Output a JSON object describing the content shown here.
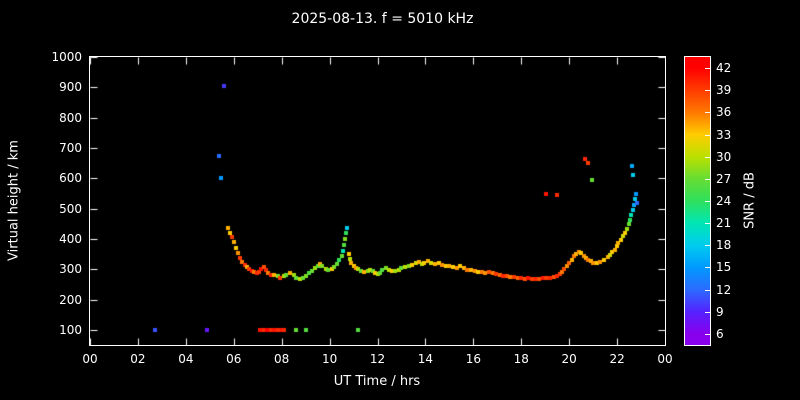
{
  "background_color": "#000000",
  "text_color": "#ffffff",
  "chart_data": {
    "type": "scatter",
    "title": "2025-08-13. f = 5010 kHz",
    "xlabel": "UT Time / hrs",
    "ylabel": "Virtual height / km",
    "xlim": [
      0,
      24
    ],
    "ylim": [
      50,
      1000
    ],
    "grid": false,
    "x_tick_values": [
      0,
      2,
      4,
      6,
      8,
      10,
      12,
      14,
      16,
      18,
      20,
      22,
      24
    ],
    "x_tick_labels": [
      "00",
      "02",
      "04",
      "06",
      "08",
      "10",
      "12",
      "14",
      "16",
      "18",
      "20",
      "22",
      "00"
    ],
    "y_tick_values": [
      100,
      200,
      300,
      400,
      500,
      600,
      700,
      800,
      900,
      1000
    ],
    "y_tick_labels": [
      "100",
      "200",
      "300",
      "400",
      "500",
      "600",
      "700",
      "800",
      "900",
      "1000"
    ],
    "colorbar": {
      "label": "SNR / dB",
      "tick_values": [
        6,
        9,
        12,
        15,
        18,
        21,
        24,
        27,
        30,
        33,
        36,
        39,
        42
      ],
      "tick_labels": [
        "6",
        "9",
        "12",
        "15",
        "18",
        "21",
        "24",
        "27",
        "30",
        "33",
        "36",
        "39",
        "42"
      ],
      "min": 4.5,
      "max": 43.5,
      "palette": [
        {
          "v": 6,
          "c": "#8800ee"
        },
        {
          "v": 9,
          "c": "#5522ff"
        },
        {
          "v": 12,
          "c": "#2b6bff"
        },
        {
          "v": 15,
          "c": "#0099ff"
        },
        {
          "v": 18,
          "c": "#00ccee"
        },
        {
          "v": 21,
          "c": "#00e6b4"
        },
        {
          "v": 24,
          "c": "#2ee05c"
        },
        {
          "v": 27,
          "c": "#66dd33"
        },
        {
          "v": 30,
          "c": "#bbe000"
        },
        {
          "v": 33,
          "c": "#ffcc00"
        },
        {
          "v": 36,
          "c": "#ff7800"
        },
        {
          "v": 39,
          "c": "#ff3c00"
        },
        {
          "v": 42,
          "c": "#ff0000"
        }
      ]
    },
    "points_format": [
      "ut_hours",
      "virtual_height_km",
      "snr_db"
    ],
    "points": [
      [
        2.7,
        100,
        11
      ],
      [
        4.9,
        100,
        8
      ],
      [
        5.38,
        675,
        12
      ],
      [
        5.47,
        600,
        15
      ],
      [
        5.6,
        905,
        10
      ],
      [
        5.78,
        435,
        34
      ],
      [
        5.86,
        420,
        33
      ],
      [
        5.93,
        405,
        39
      ],
      [
        6.0,
        390,
        34
      ],
      [
        6.08,
        370,
        33
      ],
      [
        6.17,
        352,
        35
      ],
      [
        6.26,
        338,
        39
      ],
      [
        6.35,
        325,
        36
      ],
      [
        6.45,
        315,
        40
      ],
      [
        6.55,
        306,
        34
      ],
      [
        6.65,
        300,
        39
      ],
      [
        6.75,
        294,
        41
      ],
      [
        6.85,
        290,
        36
      ],
      [
        6.95,
        286,
        40
      ],
      [
        7.05,
        290,
        39
      ],
      [
        7.15,
        302,
        41
      ],
      [
        7.25,
        308,
        38
      ],
      [
        7.35,
        296,
        40
      ],
      [
        7.45,
        288,
        36
      ],
      [
        7.55,
        282,
        40
      ],
      [
        7.7,
        280,
        34
      ],
      [
        7.85,
        276,
        28
      ],
      [
        7.95,
        272,
        39
      ],
      [
        7.1,
        100,
        41
      ],
      [
        7.25,
        100,
        40
      ],
      [
        7.4,
        100,
        42
      ],
      [
        7.55,
        100,
        40
      ],
      [
        7.7,
        100,
        41
      ],
      [
        7.85,
        100,
        40
      ],
      [
        8.0,
        100,
        41
      ],
      [
        8.1,
        100,
        40
      ],
      [
        8.1,
        276,
        30
      ],
      [
        8.2,
        282,
        27
      ],
      [
        8.35,
        288,
        34
      ],
      [
        8.5,
        280,
        29
      ],
      [
        8.6,
        272,
        27
      ],
      [
        8.75,
        268,
        30
      ],
      [
        8.9,
        272,
        27
      ],
      [
        8.6,
        100,
        27
      ],
      [
        9.0,
        100,
        26
      ],
      [
        9.0,
        278,
        28
      ],
      [
        9.15,
        286,
        26
      ],
      [
        9.25,
        295,
        27
      ],
      [
        9.4,
        305,
        29
      ],
      [
        9.5,
        312,
        27
      ],
      [
        9.6,
        318,
        34
      ],
      [
        9.7,
        310,
        28
      ],
      [
        9.85,
        302,
        30
      ],
      [
        9.95,
        296,
        27
      ],
      [
        10.1,
        300,
        33
      ],
      [
        10.2,
        308,
        28
      ],
      [
        10.3,
        318,
        27
      ],
      [
        10.4,
        330,
        24
      ],
      [
        10.5,
        345,
        27
      ],
      [
        10.55,
        360,
        21
      ],
      [
        10.6,
        380,
        26
      ],
      [
        10.65,
        400,
        28
      ],
      [
        10.7,
        420,
        24
      ],
      [
        10.72,
        435,
        18
      ],
      [
        10.8,
        350,
        33
      ],
      [
        10.85,
        335,
        30
      ],
      [
        10.9,
        322,
        34
      ],
      [
        11.0,
        312,
        33
      ],
      [
        11.1,
        305,
        35
      ],
      [
        11.2,
        100,
        26
      ],
      [
        11.2,
        300,
        30
      ],
      [
        11.3,
        295,
        27
      ],
      [
        11.45,
        290,
        34
      ],
      [
        11.6,
        293,
        28
      ],
      [
        11.7,
        298,
        30
      ],
      [
        11.8,
        294,
        27
      ],
      [
        11.9,
        288,
        33
      ],
      [
        12.0,
        285,
        30
      ],
      [
        12.1,
        289,
        27
      ],
      [
        12.2,
        296,
        26
      ],
      [
        12.35,
        303,
        28
      ],
      [
        12.5,
        299,
        30
      ],
      [
        12.6,
        293,
        33
      ],
      [
        12.75,
        295,
        29
      ],
      [
        12.9,
        299,
        30
      ],
      [
        13.0,
        303,
        27
      ],
      [
        13.15,
        308,
        30
      ],
      [
        13.3,
        312,
        28
      ],
      [
        13.45,
        315,
        33
      ],
      [
        13.6,
        320,
        31
      ],
      [
        13.75,
        324,
        34
      ],
      [
        13.85,
        318,
        30
      ],
      [
        13.95,
        322,
        33
      ],
      [
        14.1,
        327,
        34
      ],
      [
        14.25,
        322,
        31
      ],
      [
        14.4,
        317,
        34
      ],
      [
        14.55,
        319,
        33
      ],
      [
        14.7,
        314,
        35
      ],
      [
        14.85,
        310,
        33
      ],
      [
        15.0,
        312,
        34
      ],
      [
        15.15,
        308,
        33
      ],
      [
        15.3,
        305,
        35
      ],
      [
        15.45,
        309,
        33
      ],
      [
        15.6,
        303,
        34
      ],
      [
        15.75,
        299,
        36
      ],
      [
        15.9,
        297,
        34
      ],
      [
        16.05,
        294,
        35
      ],
      [
        16.2,
        292,
        33
      ],
      [
        16.35,
        290,
        36
      ],
      [
        16.5,
        288,
        35
      ],
      [
        16.65,
        290,
        38
      ],
      [
        16.8,
        287,
        36
      ],
      [
        16.95,
        284,
        39
      ],
      [
        17.1,
        281,
        37
      ],
      [
        17.25,
        278,
        40
      ],
      [
        17.4,
        277,
        38
      ],
      [
        17.55,
        275,
        36
      ],
      [
        17.7,
        273,
        39
      ],
      [
        17.85,
        271,
        37
      ],
      [
        18.0,
        270,
        40
      ],
      [
        18.15,
        268,
        38
      ],
      [
        18.3,
        270,
        41
      ],
      [
        18.45,
        268,
        39
      ],
      [
        18.6,
        269,
        40
      ],
      [
        18.75,
        268,
        38
      ],
      [
        18.9,
        271,
        41
      ],
      [
        19.05,
        272,
        39
      ],
      [
        19.2,
        271,
        40
      ],
      [
        19.35,
        274,
        38
      ],
      [
        19.5,
        278,
        40
      ],
      [
        19.05,
        548,
        41
      ],
      [
        19.5,
        545,
        40
      ],
      [
        19.6,
        283,
        39
      ],
      [
        19.7,
        292,
        36
      ],
      [
        19.8,
        302,
        38
      ],
      [
        19.9,
        312,
        35
      ],
      [
        20.0,
        322,
        37
      ],
      [
        20.1,
        332,
        34
      ],
      [
        20.2,
        342,
        36
      ],
      [
        20.3,
        350,
        34
      ],
      [
        20.4,
        356,
        35
      ],
      [
        20.5,
        352,
        33
      ],
      [
        20.6,
        344,
        35
      ],
      [
        20.7,
        336,
        34
      ],
      [
        20.8,
        330,
        36
      ],
      [
        20.9,
        326,
        34
      ],
      [
        20.65,
        662,
        40
      ],
      [
        20.8,
        650,
        39
      ],
      [
        20.95,
        595,
        27
      ],
      [
        21.0,
        322,
        35
      ],
      [
        21.15,
        320,
        33
      ],
      [
        21.3,
        324,
        35
      ],
      [
        21.45,
        330,
        33
      ],
      [
        21.6,
        340,
        34
      ],
      [
        21.7,
        348,
        31
      ],
      [
        21.8,
        356,
        33
      ],
      [
        21.9,
        365,
        34
      ],
      [
        22.0,
        375,
        33
      ],
      [
        22.05,
        385,
        34
      ],
      [
        22.15,
        395,
        33
      ],
      [
        22.25,
        408,
        31
      ],
      [
        22.35,
        420,
        33
      ],
      [
        22.4,
        432,
        29
      ],
      [
        22.5,
        448,
        27
      ],
      [
        22.55,
        462,
        24
      ],
      [
        22.6,
        478,
        21
      ],
      [
        22.65,
        495,
        18
      ],
      [
        22.7,
        512,
        16
      ],
      [
        22.75,
        530,
        18
      ],
      [
        22.8,
        548,
        15
      ],
      [
        22.85,
        520,
        12
      ],
      [
        22.62,
        640,
        16
      ],
      [
        22.68,
        610,
        18
      ]
    ]
  }
}
